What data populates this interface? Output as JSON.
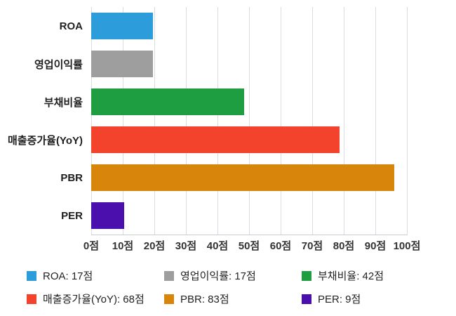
{
  "chart_data": {
    "type": "bar",
    "orientation": "horizontal",
    "title": "",
    "xlabel": "",
    "ylabel": "",
    "categories": [
      "ROA",
      "영업이익률",
      "부채비율",
      "매출증가율(YoY)",
      "PBR",
      "PER"
    ],
    "values": [
      17,
      17,
      42,
      68,
      83,
      9
    ],
    "unit": "점",
    "colors": [
      "#2d9cdb",
      "#9e9e9e",
      "#1e9e40",
      "#f4432c",
      "#d8860b",
      "#4b0fae"
    ],
    "xlim": [
      0,
      100
    ],
    "x_ticks": [
      "0점",
      "10점",
      "20점",
      "30점",
      "40점",
      "50점",
      "60점",
      "70점",
      "80점",
      "90점",
      "100점"
    ],
    "grid": true,
    "legend_position": "bottom",
    "legend": [
      "ROA: 17점",
      "영업이익률: 17점",
      "부채비율: 42점",
      "매출증가율(YoY): 68점",
      "PBR: 83점",
      "PER: 9점"
    ]
  }
}
